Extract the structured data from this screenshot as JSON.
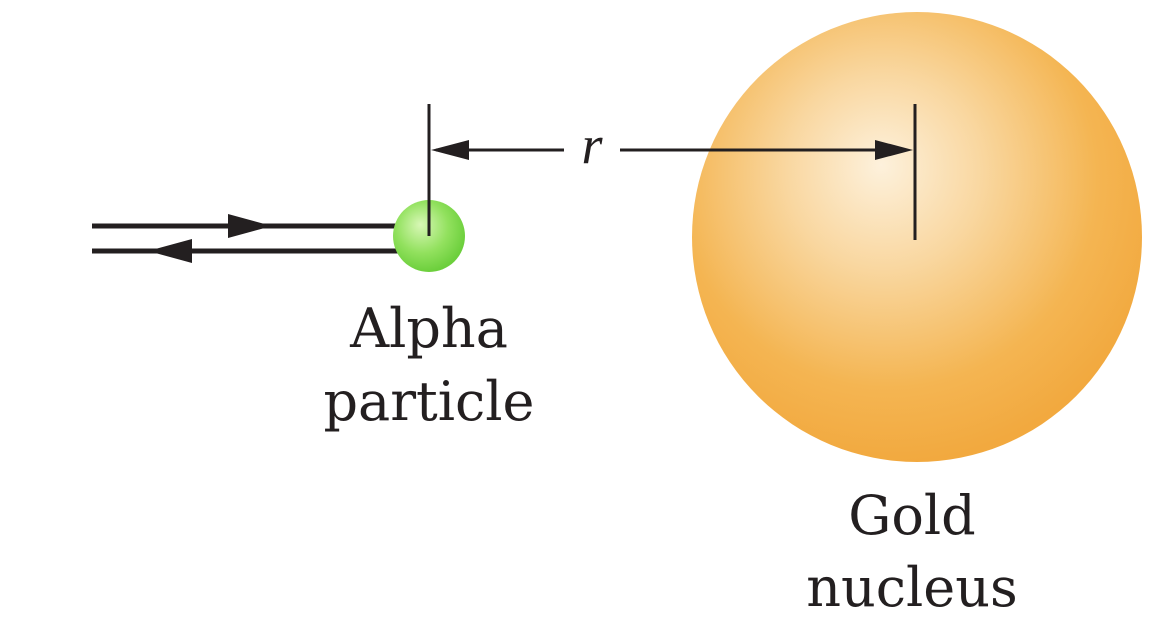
{
  "diagram": {
    "distance_label": "r",
    "alpha_label": {
      "line1": "Alpha",
      "line2": "particle"
    },
    "nucleus_label": {
      "line1": "Gold",
      "line2": "nucleus"
    }
  },
  "colors": {
    "ink": "#231f20",
    "alpha_particle": "#7ed94a",
    "alpha_particle_highlight": "#d8f7b6",
    "gold_nucleus": "#f2a93f",
    "gold_nucleus_highlight": "#fdf1dc"
  }
}
